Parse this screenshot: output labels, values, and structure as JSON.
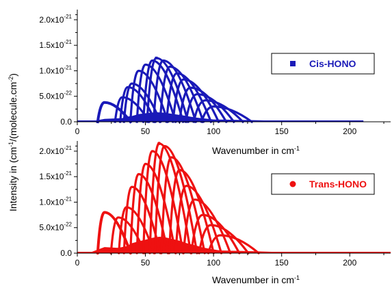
{
  "chart_data": [
    {
      "type": "scatter",
      "panel": "top",
      "xlabel_main": "Wavenumber in cm",
      "xlabel_sup": "-1",
      "xlim": [
        0,
        230
      ],
      "ylim": [
        0,
        2.2e-21
      ],
      "xticks": [
        {
          "value": 0,
          "label": "0"
        },
        {
          "value": 50,
          "label": "50"
        },
        {
          "value": 100,
          "label": "100"
        },
        {
          "value": 150,
          "label": "150"
        },
        {
          "value": 200,
          "label": "200"
        }
      ],
      "yticks": [
        {
          "value": 0,
          "label_base": "0.0",
          "label_exp": ""
        },
        {
          "value": 5e-22,
          "label_base": "5.0x10",
          "label_exp": "-22"
        },
        {
          "value": 1e-21,
          "label_base": "1.0x10",
          "label_exp": "-21"
        },
        {
          "value": 1.5e-21,
          "label_base": "1.5x10",
          "label_exp": "-21"
        },
        {
          "value": 2e-21,
          "label_base": "2.0x10",
          "label_exp": "-21"
        }
      ],
      "legend_position": "top-right",
      "series": [
        {
          "name": "Cis-HONO",
          "marker": "square",
          "color": "#1a1ab8",
          "x_range": [
            0,
            210
          ],
          "peak": {
            "x": 58,
            "y": 1.25e-21
          },
          "bands": [
            {
              "x": 20,
              "y": 3.8e-22
            },
            {
              "x": 33,
              "y": 4.8e-22
            },
            {
              "x": 37,
              "y": 6.8e-22
            },
            {
              "x": 40,
              "y": 7.5e-22
            },
            {
              "x": 45,
              "y": 1e-21
            },
            {
              "x": 50,
              "y": 1.12e-21
            },
            {
              "x": 55,
              "y": 1.2e-21
            },
            {
              "x": 58,
              "y": 1.25e-21
            },
            {
              "x": 63,
              "y": 1.2e-21
            },
            {
              "x": 68,
              "y": 1.08e-21
            },
            {
              "x": 73,
              "y": 9.5e-22
            },
            {
              "x": 78,
              "y": 8.3e-22
            },
            {
              "x": 83,
              "y": 6.7e-22
            },
            {
              "x": 88,
              "y": 5.4e-22
            },
            {
              "x": 94,
              "y": 4.2e-22
            },
            {
              "x": 100,
              "y": 3e-22
            }
          ]
        }
      ]
    },
    {
      "type": "scatter",
      "panel": "bottom",
      "xlabel_main": "Wavenumber in cm",
      "xlabel_sup": "-1",
      "xlim": [
        0,
        230
      ],
      "ylim": [
        0,
        2.2e-21
      ],
      "xticks": [
        {
          "value": 0,
          "label": "0"
        },
        {
          "value": 50,
          "label": "50"
        },
        {
          "value": 100,
          "label": "100"
        },
        {
          "value": 150,
          "label": "150"
        },
        {
          "value": 200,
          "label": "200"
        }
      ],
      "yticks": [
        {
          "value": 0,
          "label_base": "0.0",
          "label_exp": ""
        },
        {
          "value": 5e-22,
          "label_base": "5.0x10",
          "label_exp": "-22"
        },
        {
          "value": 1e-21,
          "label_base": "1.0x10",
          "label_exp": "-21"
        },
        {
          "value": 1.5e-21,
          "label_base": "1.5x10",
          "label_exp": "-21"
        },
        {
          "value": 2e-21,
          "label_base": "2.0x10",
          "label_exp": "-21"
        }
      ],
      "legend_position": "right",
      "series": [
        {
          "name": "Trans-HONO",
          "marker": "circle",
          "color": "#ee1111",
          "x_range": [
            0,
            230
          ],
          "peak": {
            "x": 60,
            "y": 2.15e-21
          },
          "bands": [
            {
              "x": 20,
              "y": 8e-22
            },
            {
              "x": 30,
              "y": 7e-22
            },
            {
              "x": 36,
              "y": 9e-22
            },
            {
              "x": 40,
              "y": 1.3e-21
            },
            {
              "x": 45,
              "y": 1.55e-21
            },
            {
              "x": 50,
              "y": 1.75e-21
            },
            {
              "x": 55,
              "y": 2e-21
            },
            {
              "x": 60,
              "y": 2.15e-21
            },
            {
              "x": 64,
              "y": 2.1e-21
            },
            {
              "x": 69,
              "y": 1.88e-21
            },
            {
              "x": 75,
              "y": 1.63e-21
            },
            {
              "x": 80,
              "y": 1.32e-21
            },
            {
              "x": 86,
              "y": 1.05e-21
            },
            {
              "x": 92,
              "y": 7.5e-22
            },
            {
              "x": 98,
              "y": 5.5e-22
            },
            {
              "x": 105,
              "y": 3.5e-22
            }
          ]
        }
      ]
    }
  ],
  "shared_ylabel": {
    "p1": "Intensity in (cm",
    "s1": "-1",
    "p2": "/(molecule.cm",
    "s2": "-2",
    "p3": ")"
  }
}
